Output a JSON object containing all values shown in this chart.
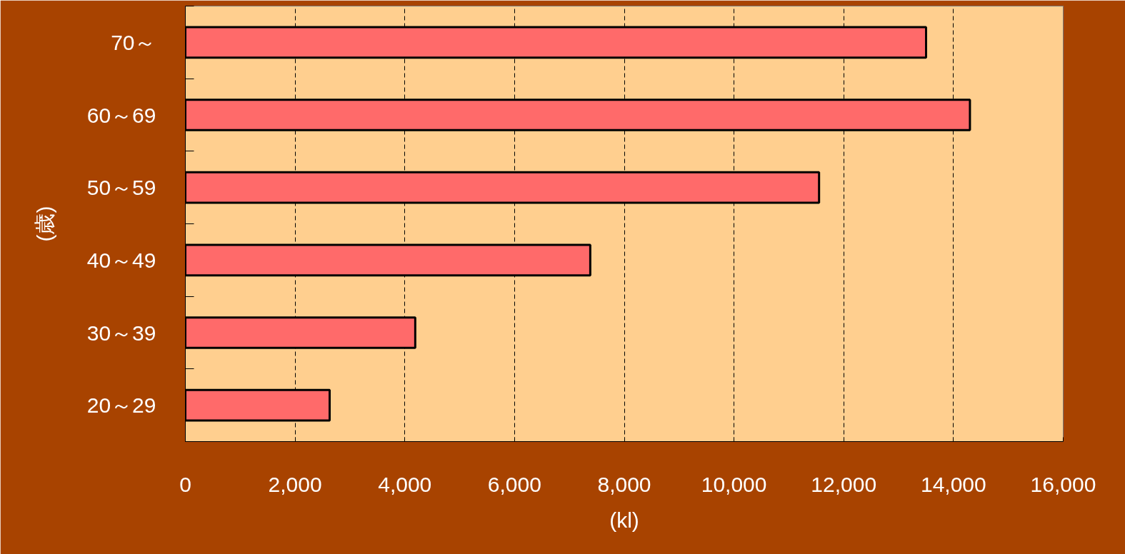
{
  "chart_data": {
    "type": "bar",
    "orientation": "horizontal",
    "xlabel": "(kl)",
    "ylabel": "(歳)",
    "categories": [
      "70～",
      "60～69",
      "50～59",
      "40～49",
      "30～39",
      "20～29"
    ],
    "values": [
      13500,
      14300,
      11550,
      7380,
      4190,
      2630
    ],
    "color": "#ff6a6a",
    "xlim": [
      0,
      16000
    ],
    "xticks": [
      {
        "value": 0,
        "label": "0"
      },
      {
        "value": 2000,
        "label": "2,000"
      },
      {
        "value": 4000,
        "label": "4,000"
      },
      {
        "value": 6000,
        "label": "6,000"
      },
      {
        "value": 8000,
        "label": "8,000"
      },
      {
        "value": 10000,
        "label": "10,000"
      },
      {
        "value": 12000,
        "label": "12,000"
      },
      {
        "value": 14000,
        "label": "14,000"
      },
      {
        "value": 16000,
        "label": "16,000"
      }
    ],
    "grid": "x"
  }
}
